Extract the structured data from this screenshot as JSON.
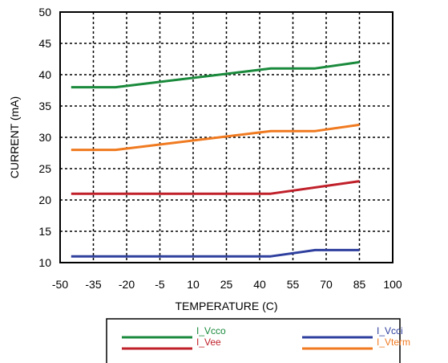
{
  "chart_data": {
    "type": "line",
    "title": "",
    "xlabel": "TEMPERATURE (C)",
    "ylabel": "CURRENT (mA)",
    "xlim": [
      -50,
      100
    ],
    "ylim": [
      10,
      50
    ],
    "xticks": [
      -50,
      -35,
      -20,
      -5,
      10,
      25,
      40,
      55,
      70,
      85,
      100
    ],
    "yticks": [
      10,
      15,
      20,
      25,
      30,
      35,
      40,
      45,
      50
    ],
    "grid": "dashed",
    "legend": "bottom",
    "series": [
      {
        "name": "I_Vcco",
        "color": "#1a8a3c",
        "x": [
          -45,
          -25,
          45,
          65,
          85
        ],
        "y": [
          38,
          38,
          41,
          41,
          42
        ]
      },
      {
        "name": "I_Vee",
        "color": "#c0202a",
        "x": [
          -45,
          45,
          85
        ],
        "y": [
          21,
          21,
          23
        ]
      },
      {
        "name": "I_Vcci",
        "color": "#2e3f9e",
        "x": [
          -45,
          45,
          65,
          85
        ],
        "y": [
          11,
          11,
          12,
          12
        ]
      },
      {
        "name": "I_Vterm",
        "color": "#f07a20",
        "x": [
          -45,
          -25,
          45,
          65,
          85
        ],
        "y": [
          28,
          28,
          31,
          31,
          32
        ]
      }
    ]
  }
}
